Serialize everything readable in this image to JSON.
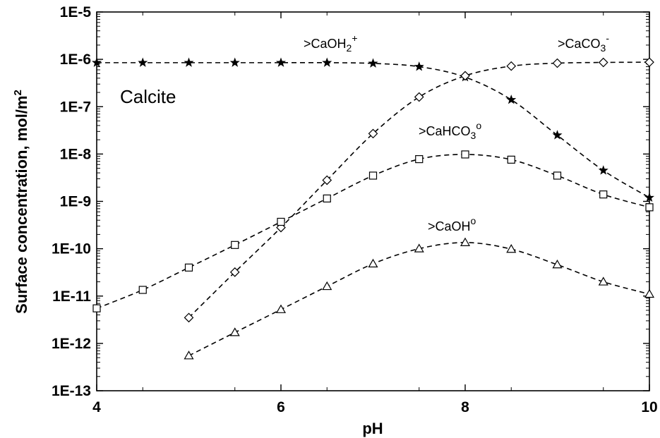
{
  "chart_data": {
    "type": "scatter",
    "title": "",
    "inset_label": "Calcite",
    "xlabel": "pH",
    "ylabel": "Surface concentration, mol/m2",
    "xlim": [
      4,
      10
    ],
    "ylim": [
      1e-13,
      1e-05
    ],
    "y_scale": "log",
    "x_ticks": [
      "4",
      "6",
      "8",
      "10"
    ],
    "y_ticks": [
      "1E-13",
      "1E-12",
      "1E-11",
      "1E-10",
      "1E-9",
      "1E-8",
      "1E-7",
      "1E-6",
      "1E-5"
    ],
    "grid": false,
    "series": [
      {
        "name": ">CaOH2+",
        "marker": "star",
        "x": [
          4,
          4.5,
          5,
          5.5,
          6,
          6.5,
          7,
          7.5,
          8,
          8.5,
          9,
          9.5,
          10
        ],
        "y": [
          8.5e-07,
          8.5e-07,
          8.5e-07,
          8.5e-07,
          8.5e-07,
          8.5e-07,
          8.2e-07,
          7e-07,
          4.2e-07,
          1.4e-07,
          2.5e-08,
          4.5e-09,
          1.2e-09
        ]
      },
      {
        "name": ">CaCO3-",
        "marker": "diamond",
        "x": [
          5,
          5.5,
          6,
          6.5,
          7,
          7.5,
          8,
          8.5,
          9,
          9.5,
          10
        ],
        "y": [
          3.5e-12,
          3.2e-11,
          2.8e-10,
          2.8e-09,
          2.7e-08,
          1.6e-07,
          4.5e-07,
          7.2e-07,
          8.3e-07,
          8.6e-07,
          8.7e-07
        ]
      },
      {
        "name": ">CaHCO3o",
        "marker": "square",
        "x": [
          4,
          4.5,
          5,
          5.5,
          6,
          6.5,
          7,
          7.5,
          8,
          8.5,
          9,
          9.5,
          10
        ],
        "y": [
          5.5e-12,
          1.35e-11,
          4e-11,
          1.2e-10,
          3.7e-10,
          1.15e-09,
          3.5e-09,
          7.8e-09,
          9.8e-09,
          7.6e-09,
          3.5e-09,
          1.4e-09,
          7.5e-10
        ]
      },
      {
        "name": ">CaOHo",
        "marker": "triangle",
        "x": [
          5,
          5.5,
          6,
          6.5,
          7,
          7.5,
          8,
          8.5,
          9,
          9.5,
          10
        ],
        "y": [
          5.5e-13,
          1.7e-12,
          5.2e-12,
          1.6e-11,
          4.8e-11,
          1e-10,
          1.35e-10,
          9.8e-11,
          4.6e-11,
          2e-11,
          1.1e-11
        ]
      }
    ],
    "annotations": [
      {
        "base": ">CaOH",
        "sub": "2",
        "sup": "+"
      },
      {
        "base": ">CaCO",
        "sub": "3",
        "sup": "-"
      },
      {
        "base": ">CaHCO",
        "sub": "3",
        "sup": "o"
      },
      {
        "base": ">CaOH",
        "sub": "",
        "sup": "o"
      }
    ]
  }
}
